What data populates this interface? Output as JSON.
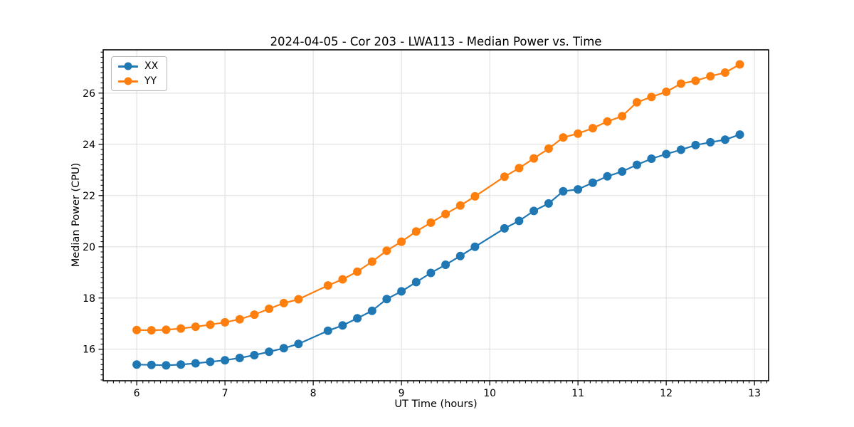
{
  "chart_data": {
    "type": "line",
    "title": "2024-04-05 - Cor 203 - LWA113 - Median Power vs. Time",
    "xlabel": "UT Time (hours)",
    "ylabel": "Median Power (CPU)",
    "xlim": [
      5.62,
      13.16
    ],
    "ylim": [
      14.77,
      27.69
    ],
    "xticks": [
      6,
      7,
      8,
      9,
      10,
      11,
      12,
      13
    ],
    "yticks": [
      16,
      18,
      20,
      22,
      24,
      26
    ],
    "x_minor_step": 0.0667,
    "y_minor_step": 0.2,
    "grid": true,
    "legend_position": "upper left",
    "background_color": "#ffffff",
    "grid_color": "#dedede",
    "spine_color": "#000000",
    "x": [
      6.0,
      6.167,
      6.333,
      6.5,
      6.667,
      6.833,
      7.0,
      7.167,
      7.333,
      7.5,
      7.667,
      7.833,
      8.167,
      8.333,
      8.5,
      8.667,
      8.833,
      9.0,
      9.167,
      9.333,
      9.5,
      9.667,
      9.833,
      10.167,
      10.333,
      10.5,
      10.667,
      10.833,
      11.0,
      11.167,
      11.333,
      11.5,
      11.667,
      11.833,
      12.0,
      12.167,
      12.333,
      12.5,
      12.667,
      12.833
    ],
    "series": [
      {
        "name": "XX",
        "color": "#1f77b4",
        "values": [
          15.4,
          15.39,
          15.37,
          15.4,
          15.45,
          15.51,
          15.57,
          15.66,
          15.77,
          15.9,
          16.04,
          16.21,
          16.72,
          16.93,
          17.21,
          17.5,
          17.96,
          18.26,
          18.62,
          18.98,
          19.3,
          19.64,
          20.0,
          20.72,
          21.01,
          21.4,
          21.69,
          22.17,
          22.24,
          22.5,
          22.75,
          22.94,
          23.2,
          23.44,
          23.62,
          23.79,
          23.97,
          24.08,
          24.18,
          24.38
        ]
      },
      {
        "name": "YY",
        "color": "#ff7f0e",
        "values": [
          16.75,
          16.74,
          16.76,
          16.81,
          16.88,
          16.96,
          17.05,
          17.17,
          17.35,
          17.58,
          17.8,
          17.95,
          18.49,
          18.73,
          19.03,
          19.42,
          19.85,
          20.2,
          20.6,
          20.94,
          21.28,
          21.61,
          21.97,
          22.74,
          23.07,
          23.45,
          23.83,
          24.27,
          24.42,
          24.63,
          24.89,
          25.1,
          25.64,
          25.85,
          26.05,
          26.37,
          26.48,
          26.66,
          26.8,
          27.12
        ]
      }
    ]
  }
}
